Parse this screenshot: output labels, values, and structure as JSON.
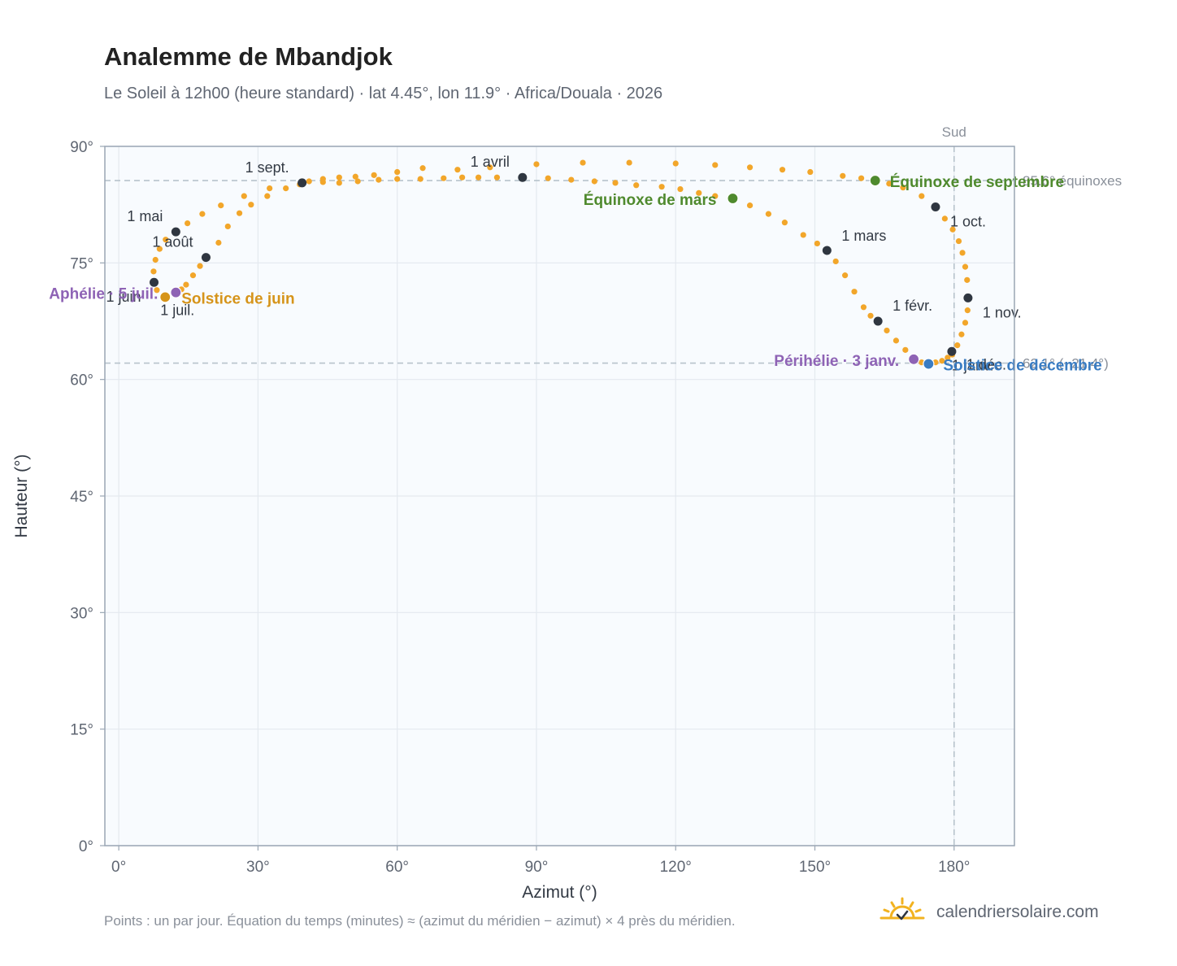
{
  "header": {
    "title": "Analemme de Mbandjok",
    "subtitle": "Le Soleil à 12h00 (heure standard) · lat 4.45°, lon 11.9° · Africa/Douala · 2026"
  },
  "footer": {
    "note": "Points : un par jour. Équation du temps (minutes) ≈ (azimut du méridien − azimut) × 4 près du méridien.",
    "brand": "calendriersolaire.com",
    "brand_icon": "sun-check-icon"
  },
  "colors": {
    "curve": "#f2a62a",
    "month_marker": "#2f3640",
    "equinox": "#4f8a2e",
    "solstice_june": "#d6941a",
    "solstice_december": "#3a7cc2",
    "apsis": "#8e63b5",
    "reference_line": "#b7c3cc",
    "plot_background": "#f8fbfe",
    "frame": "#9aa6b4"
  },
  "chart_data": {
    "type": "scatter",
    "xlabel": "Azimut (°)",
    "ylabel": "Hauteur (°)",
    "xlim": [
      -3,
      193
    ],
    "ylim": [
      0,
      90
    ],
    "x_ticks": [
      0,
      30,
      60,
      90,
      120,
      150,
      180
    ],
    "x_tick_labels": [
      "0°",
      "30°",
      "60°",
      "90°",
      "120°",
      "150°",
      "180°"
    ],
    "y_ticks": [
      0,
      15,
      30,
      45,
      60,
      75,
      90
    ],
    "y_tick_labels": [
      "0°",
      "15°",
      "30°",
      "45°",
      "60°",
      "75°",
      "90°"
    ],
    "grid": true,
    "series": [
      {
        "kind": "daily-sun-position",
        "points": [
          [
            174.5,
            62.0
          ],
          [
            176.0,
            62.2
          ],
          [
            177.4,
            62.4
          ],
          [
            178.6,
            62.8
          ],
          [
            179.6,
            63.2
          ],
          [
            180.7,
            64.4
          ],
          [
            181.6,
            65.8
          ],
          [
            182.4,
            67.3
          ],
          [
            182.9,
            68.9
          ],
          [
            183.0,
            70.5
          ],
          [
            182.8,
            72.8
          ],
          [
            182.4,
            74.5
          ],
          [
            181.8,
            76.3
          ],
          [
            181.0,
            77.8
          ],
          [
            179.7,
            79.3
          ],
          [
            178.0,
            80.7
          ],
          [
            176.0,
            82.2
          ],
          [
            173.0,
            83.6
          ],
          [
            169.0,
            84.7
          ],
          [
            166.0,
            85.2
          ],
          [
            163.0,
            85.6
          ],
          [
            160.0,
            85.9
          ],
          [
            156.0,
            86.2
          ],
          [
            149.0,
            86.7
          ],
          [
            143.0,
            87.0
          ],
          [
            136.0,
            87.3
          ],
          [
            128.5,
            87.6
          ],
          [
            120.0,
            87.8
          ],
          [
            110.0,
            87.9
          ],
          [
            100.0,
            87.9
          ],
          [
            90.0,
            87.7
          ],
          [
            80.0,
            87.3
          ],
          [
            73.0,
            87.0
          ],
          [
            65.5,
            87.2
          ],
          [
            60.0,
            86.7
          ],
          [
            55.0,
            86.3
          ],
          [
            51.0,
            86.1
          ],
          [
            47.5,
            86.0
          ],
          [
            44.0,
            85.8
          ],
          [
            41.0,
            85.5
          ],
          [
            39.0,
            85.1
          ],
          [
            36.0,
            84.6
          ],
          [
            32.0,
            83.6
          ],
          [
            28.5,
            82.5
          ],
          [
            26.0,
            81.4
          ],
          [
            23.5,
            79.7
          ],
          [
            21.5,
            77.6
          ],
          [
            18.8,
            75.7
          ],
          [
            17.5,
            74.6
          ],
          [
            16.0,
            73.4
          ],
          [
            14.5,
            72.2
          ],
          [
            13.5,
            71.6
          ],
          [
            12.3,
            71.2
          ],
          [
            10.0,
            70.6
          ],
          [
            8.2,
            71.5
          ],
          [
            7.6,
            72.5
          ],
          [
            7.5,
            73.9
          ],
          [
            7.9,
            75.4
          ],
          [
            8.8,
            76.8
          ],
          [
            10.1,
            78.0
          ],
          [
            12.3,
            79.0
          ],
          [
            14.8,
            80.1
          ],
          [
            18.0,
            81.3
          ],
          [
            22.0,
            82.4
          ],
          [
            27.0,
            83.6
          ],
          [
            32.5,
            84.6
          ],
          [
            39.5,
            85.3
          ],
          [
            44.0,
            85.4
          ],
          [
            47.5,
            85.3
          ],
          [
            51.5,
            85.5
          ],
          [
            56.0,
            85.7
          ],
          [
            60.0,
            85.8
          ],
          [
            65.0,
            85.8
          ],
          [
            70.0,
            85.9
          ],
          [
            74.0,
            86.0
          ],
          [
            77.5,
            86.0
          ],
          [
            81.5,
            86.0
          ],
          [
            87.0,
            86.0
          ],
          [
            92.5,
            85.9
          ],
          [
            97.5,
            85.7
          ],
          [
            102.5,
            85.5
          ],
          [
            107.0,
            85.3
          ],
          [
            111.5,
            85.0
          ],
          [
            117.0,
            84.8
          ],
          [
            121.0,
            84.5
          ],
          [
            125.0,
            84.0
          ],
          [
            128.5,
            83.6
          ],
          [
            132.3,
            83.3
          ],
          [
            136.0,
            82.4
          ],
          [
            140.0,
            81.3
          ],
          [
            143.5,
            80.2
          ],
          [
            147.5,
            78.6
          ],
          [
            150.5,
            77.5
          ],
          [
            152.6,
            76.6
          ],
          [
            154.5,
            75.2
          ],
          [
            156.5,
            73.4
          ],
          [
            158.5,
            71.3
          ],
          [
            160.5,
            69.3
          ],
          [
            162.0,
            68.2
          ],
          [
            163.6,
            67.5
          ],
          [
            165.5,
            66.3
          ],
          [
            167.5,
            65.0
          ],
          [
            169.5,
            63.8
          ],
          [
            171.3,
            62.6
          ],
          [
            173.0,
            62.2
          ]
        ]
      }
    ],
    "month_markers": [
      {
        "label": "1 janv.",
        "x": 179.5,
        "y": 63.6
      },
      {
        "label": "1 févr.",
        "x": 163.6,
        "y": 67.5
      },
      {
        "label": "1 mars",
        "x": 152.6,
        "y": 76.6
      },
      {
        "label": "1 avril",
        "x": 87.0,
        "y": 86.0
      },
      {
        "label": "1 mai",
        "x": 12.3,
        "y": 79.0
      },
      {
        "label": "1 juin",
        "x": 7.6,
        "y": 72.5
      },
      {
        "label": "1 juil.",
        "x": 10.0,
        "y": 70.6
      },
      {
        "label": "1 août",
        "x": 18.8,
        "y": 75.7
      },
      {
        "label": "1 sept.",
        "x": 39.5,
        "y": 85.3
      },
      {
        "label": "1 oct.",
        "x": 176.0,
        "y": 82.2
      },
      {
        "label": "1 nov.",
        "x": 183.0,
        "y": 70.5
      },
      {
        "label": "1 déc.",
        "x": 179.5,
        "y": 63.6
      }
    ],
    "events": [
      {
        "label": "Équinoxe de mars",
        "x": 132.3,
        "y": 83.3,
        "kind": "equinox"
      },
      {
        "label": "Équinoxe de septembre",
        "x": 163.0,
        "y": 85.6,
        "kind": "equinox"
      },
      {
        "label": "Solstice de juin",
        "x": 10.0,
        "y": 70.6,
        "kind": "solstice_june"
      },
      {
        "label": "Solstice de décembre",
        "x": 174.5,
        "y": 62.0,
        "kind": "solstice_december"
      },
      {
        "label": "Aphélie · 5 juil.",
        "x": 12.3,
        "y": 71.2,
        "kind": "apsis"
      },
      {
        "label": "Périhélie · 3 janv.",
        "x": 171.3,
        "y": 62.6,
        "kind": "apsis"
      }
    ],
    "reference_lines": [
      {
        "axis": "y",
        "value": 85.6,
        "label": "85.6° équinoxes"
      },
      {
        "axis": "y",
        "value": 62.1,
        "label": "62.1° (−21.4°)"
      },
      {
        "axis": "x",
        "value": 180,
        "label": "Sud"
      }
    ]
  }
}
